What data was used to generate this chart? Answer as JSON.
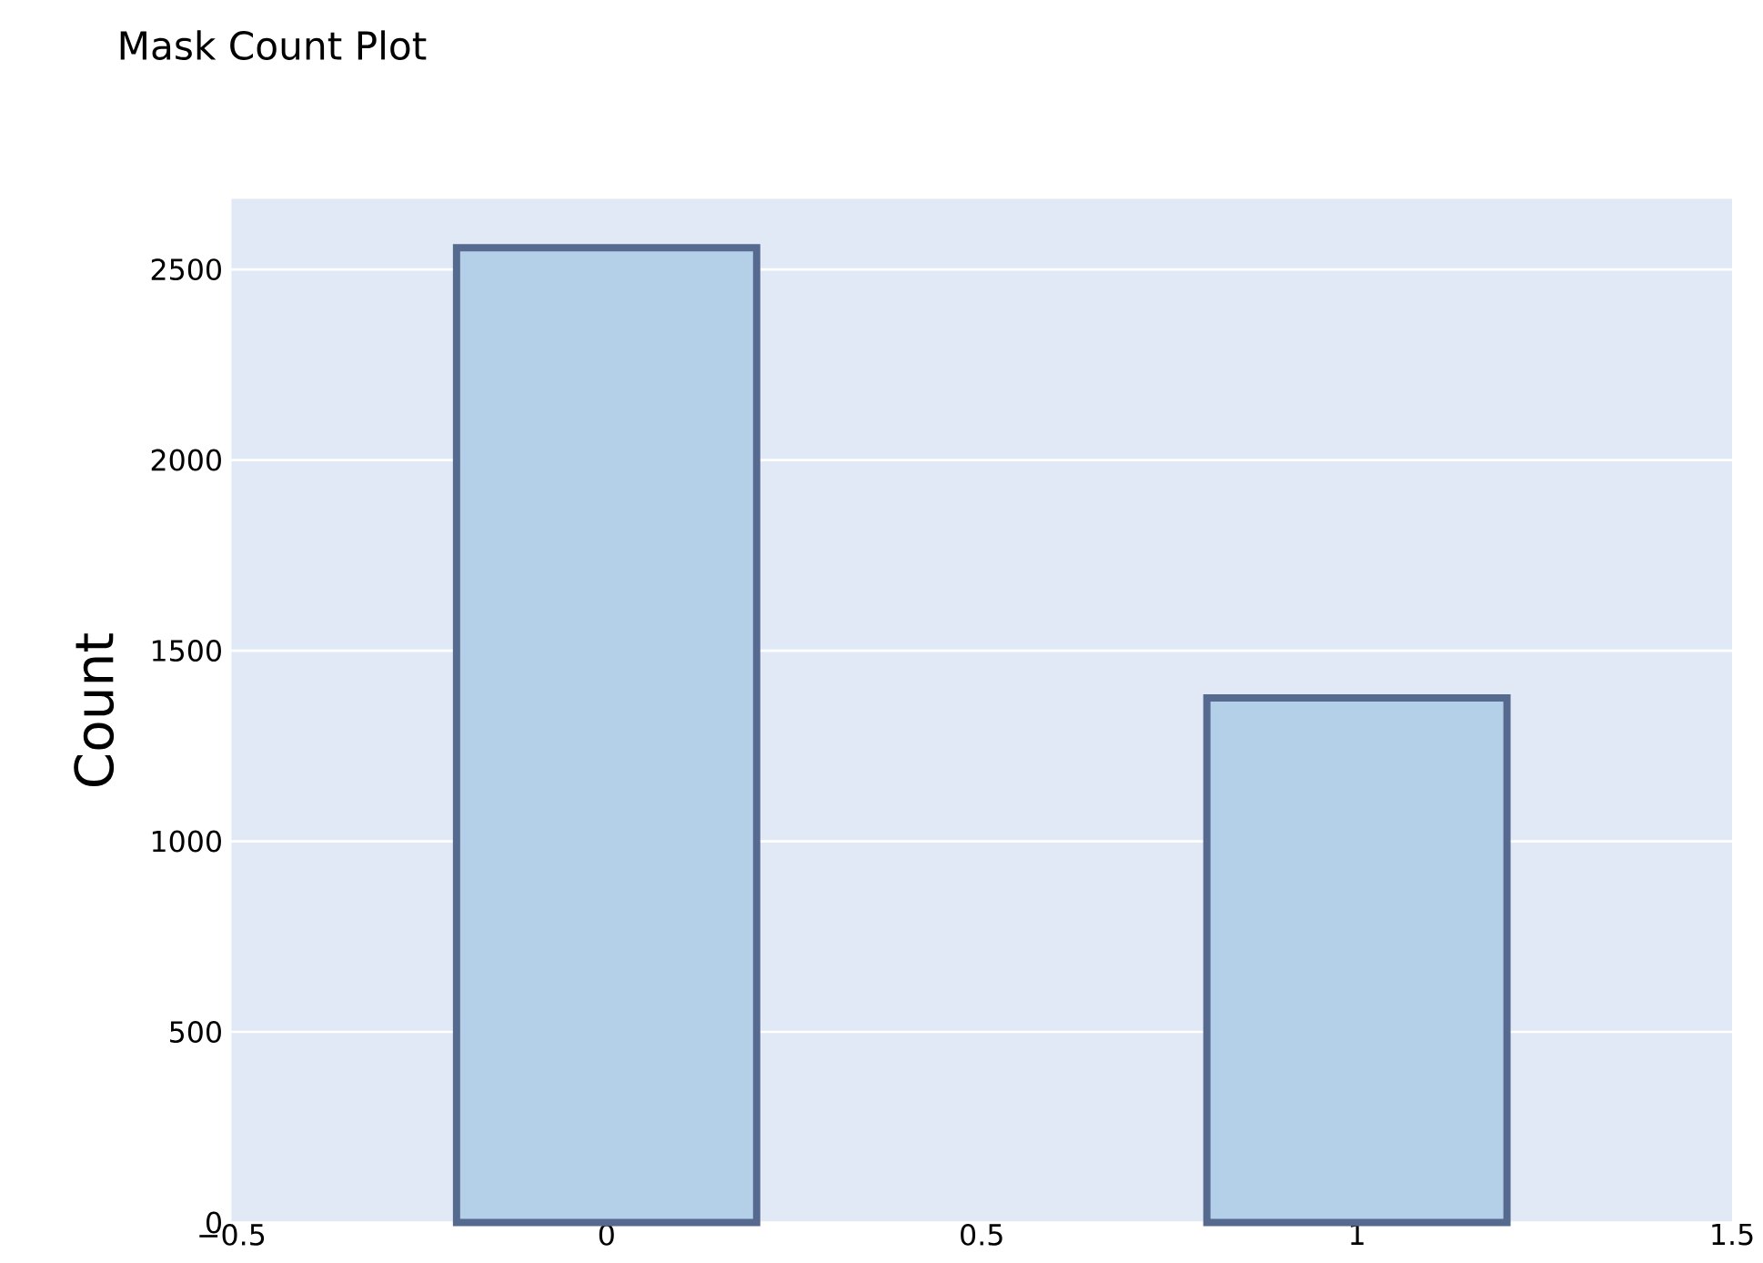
{
  "chart_data": {
    "type": "bar",
    "title": "Mask Count Plot",
    "ylabel": "Count",
    "x": [
      0,
      1
    ],
    "values": [
      2557,
      1376
    ],
    "color": "#b3d0e8",
    "xlim": [
      -0.5,
      1.5
    ],
    "xticks": [
      {
        "value": -0.5,
        "label": "−0.5"
      },
      0,
      0.5,
      1,
      1.5
    ],
    "ylim": [
      0,
      2685
    ],
    "yticks": [
      0,
      500,
      1000,
      1500,
      2000,
      2500
    ],
    "grid": "y"
  }
}
